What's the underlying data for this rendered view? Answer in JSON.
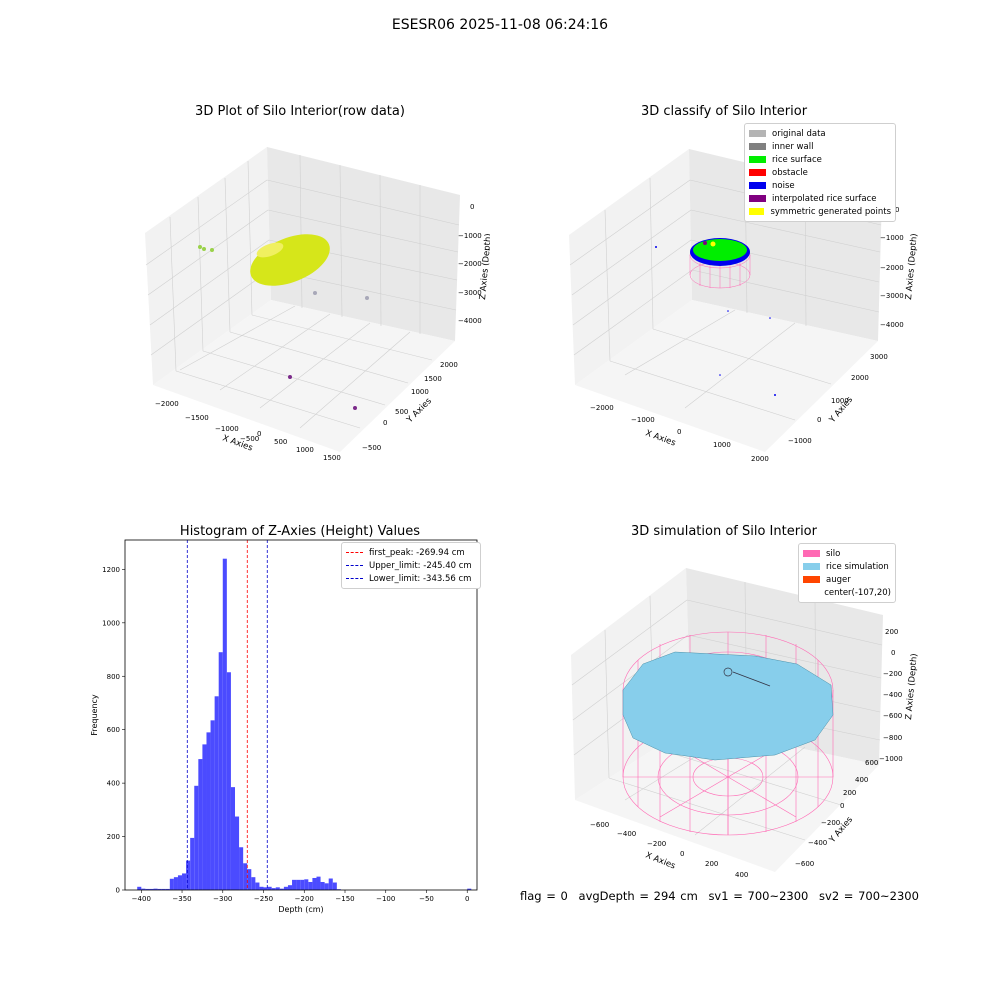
{
  "figure": {
    "suptitle": "ESESR06 2025-11-08 06:24:16"
  },
  "panel1": {
    "title": "3D Plot of Silo Interior(row data)",
    "xlabel": "X Axies",
    "ylabel": "Y Axies",
    "zlabel": "Z Axies (Depth)",
    "xticks": [
      "−2000",
      "−1500",
      "−1000",
      "−500",
      "0",
      "500",
      "1000",
      "1500"
    ],
    "yticks": [
      "−500",
      "0",
      "500",
      "1000",
      "1500",
      "2000"
    ],
    "zticks": [
      "0",
      "−1000",
      "−2000",
      "−3000",
      "−4000"
    ],
    "colors": {
      "surface": "#d6e61a",
      "cluster": "#9ad24a",
      "noise_grey": "#a8a8b8",
      "noise_purple": "#7b2a8a"
    }
  },
  "panel2": {
    "title": "3D classify of Silo Interior",
    "xlabel": "X Axies",
    "ylabel": "Y Axies",
    "zlabel": "Z Axies (Depth)",
    "xticks": [
      "−2000",
      "−1000",
      "0",
      "1000",
      "2000"
    ],
    "yticks": [
      "−1000",
      "0",
      "1000",
      "2000",
      "3000"
    ],
    "zticks": [
      "0",
      "−1000",
      "−2000",
      "−3000",
      "−4000"
    ],
    "legend": [
      {
        "label": "original data",
        "color": "#b4b4b4"
      },
      {
        "label": "inner wall",
        "color": "#808080"
      },
      {
        "label": "rice surface",
        "color": "#00ee00"
      },
      {
        "label": "obstacle",
        "color": "#ff0000"
      },
      {
        "label": "noise",
        "color": "#0000ee"
      },
      {
        "label": "interpolated rice surface",
        "color": "#800080"
      },
      {
        "label": "symmetric generated points",
        "color": "#ffff00"
      }
    ]
  },
  "panel3": {
    "title": "Histogram of Z-Axies (Height) Values",
    "xlabel": "Depth (cm)",
    "ylabel": "Frequency",
    "legend": [
      {
        "label": "first_peak: -269.94 cm",
        "color": "#ff0000"
      },
      {
        "label": "Upper_limit: -245.40 cm",
        "color": "#0000cc"
      },
      {
        "label": "Lower_limit: -343.56 cm",
        "color": "#0000cc"
      }
    ]
  },
  "panel4": {
    "title": "3D simulation of Silo Interior",
    "xlabel": "X Axies",
    "ylabel": "Y Axies",
    "zlabel": "Z Axies (Depth)",
    "xticks": [
      "−600",
      "−400",
      "−200",
      "0",
      "200",
      "400"
    ],
    "yticks": [
      "−600",
      "−400",
      "−200",
      "0",
      "200",
      "400",
      "600"
    ],
    "zticks": [
      "200",
      "0",
      "−200",
      "−400",
      "−600",
      "−800",
      "−1000"
    ],
    "legend": [
      {
        "label": "silo",
        "color": "#ff69b4"
      },
      {
        "label": "rice simulation",
        "color": "#87ceeb"
      },
      {
        "label": "auger",
        "color": "#ff4500"
      },
      {
        "label": "center(-107,20)",
        "color": ""
      }
    ]
  },
  "status": {
    "flag": "flag = 0",
    "avg_depth": "avgDepth = 294 cm",
    "sv1": "sv1 = 700~2300",
    "sv2": "sv2 = 700~2300"
  },
  "chart_data": [
    {
      "type": "scatter",
      "title": "3D Plot of Silo Interior(row data)",
      "xlabel": "X Axies",
      "ylabel": "Y Axies",
      "zlabel": "Z Axies (Depth)",
      "xlim": [
        -2200,
        1700
      ],
      "ylim": [
        -700,
        2300
      ],
      "zlim": [
        -4500,
        300
      ],
      "series": [
        {
          "values": [
            [
              -400,
              800,
              -2300
            ],
            [
              400,
              1300,
              -2200
            ]
          ]
        },
        {
          "values": [
            [
              -2000,
              1500,
              -1300
            ],
            [
              -1900,
              1550,
              -1250
            ]
          ]
        },
        {
          "values": [
            [
              500,
              300,
              -3300
            ],
            [
              1200,
              500,
              -3700
            ]
          ]
        },
        {
          "values": [
            [
              200,
              -500,
              -4000
            ],
            [
              1400,
              -300,
              -4200
            ]
          ]
        }
      ]
    },
    {
      "type": "scatter",
      "title": "3D classify of Silo Interior",
      "xlabel": "X Axies",
      "ylabel": "Y Axies",
      "zlabel": "Z Axies (Depth)",
      "xlim": [
        -2500,
        2200
      ],
      "ylim": [
        -1400,
        3300
      ],
      "zlim": [
        -4500,
        300
      ],
      "series": [
        {
          "name": "rice surface",
          "values": [
            [
              0,
              1800,
              -2700
            ]
          ]
        },
        {
          "name": "noise",
          "values": [
            [
              -2200,
              2000,
              -1500
            ],
            [
              1800,
              -1000,
              -4300
            ]
          ]
        }
      ]
    },
    {
      "type": "bar",
      "title": "Histogram of Z-Axies (Height) Values",
      "xlabel": "Depth (cm)",
      "ylabel": "Frequency",
      "xlim": [
        -420,
        12
      ],
      "ylim": [
        0,
        1310
      ],
      "bin_width": 5,
      "x": [
        -405,
        -400,
        -395,
        -390,
        -385,
        -380,
        -375,
        -370,
        -365,
        -360,
        -355,
        -350,
        -345,
        -340,
        -335,
        -330,
        -325,
        -320,
        -315,
        -310,
        -305,
        -300,
        -295,
        -290,
        -285,
        -280,
        -275,
        -270,
        -265,
        -260,
        -255,
        -250,
        -245,
        -240,
        -235,
        -230,
        -225,
        -220,
        -215,
        -210,
        -205,
        -200,
        -195,
        -190,
        -185,
        -180,
        -175,
        -170,
        -165,
        -160,
        -155,
        -150,
        -145,
        -140,
        -135,
        -130,
        -125,
        -120,
        -115,
        -110,
        -105,
        -100,
        -95,
        -90,
        -85,
        -80,
        -75,
        -70,
        -65,
        -60,
        -55,
        -50,
        -45,
        -40,
        -35,
        -30,
        -25,
        -20,
        -15,
        -10,
        -5,
        0
      ],
      "values": [
        12,
        5,
        4,
        4,
        5,
        4,
        4,
        4,
        42,
        48,
        55,
        62,
        110,
        195,
        390,
        490,
        545,
        590,
        635,
        725,
        890,
        1240,
        815,
        385,
        275,
        160,
        100,
        78,
        48,
        28,
        12,
        10,
        12,
        7,
        10,
        5,
        12,
        18,
        38,
        38,
        38,
        40,
        30,
        45,
        50,
        30,
        25,
        43,
        28,
        3,
        0,
        0,
        0,
        0,
        0,
        0,
        0,
        0,
        0,
        0,
        0,
        0,
        0,
        0,
        0,
        0,
        0,
        0,
        0,
        0,
        0,
        0,
        0,
        0,
        0,
        0,
        0,
        0,
        0,
        0,
        0,
        5
      ],
      "x_is_left_edge_of": "bars from -405 to -235 cover the main cluster; tail -215 to -40",
      "yticks": [
        0,
        200,
        400,
        600,
        800,
        1000,
        1200
      ],
      "xticks": [
        -400,
        -350,
        -300,
        -250,
        -200,
        -150,
        -100,
        -50,
        0
      ],
      "vlines": [
        {
          "name": "first_peak: -269.94 cm",
          "x": -269.94,
          "color": "#ff0000"
        },
        {
          "name": "Upper_limit: -245.40 cm",
          "x": -245.4,
          "color": "#0000cc"
        },
        {
          "name": "Lower_limit: -343.56 cm",
          "x": -343.56,
          "color": "#0000cc"
        }
      ],
      "color": "#4b4bff"
    },
    {
      "type": "scatter",
      "title": "3D simulation of Silo Interior",
      "xlabel": "X Axies",
      "ylabel": "Y Axies",
      "zlabel": "Z Axies (Depth)",
      "xlim": [
        -700,
        500
      ],
      "ylim": [
        -700,
        700
      ],
      "zlim": [
        -1050,
        300
      ],
      "series": [
        {
          "name": "silo",
          "values": []
        },
        {
          "name": "rice simulation",
          "values": []
        },
        {
          "name": "auger",
          "values": []
        },
        {
          "name": "center(-107,20)",
          "values": [
            [
              -107,
              20,
              -300
            ]
          ]
        }
      ]
    }
  ]
}
